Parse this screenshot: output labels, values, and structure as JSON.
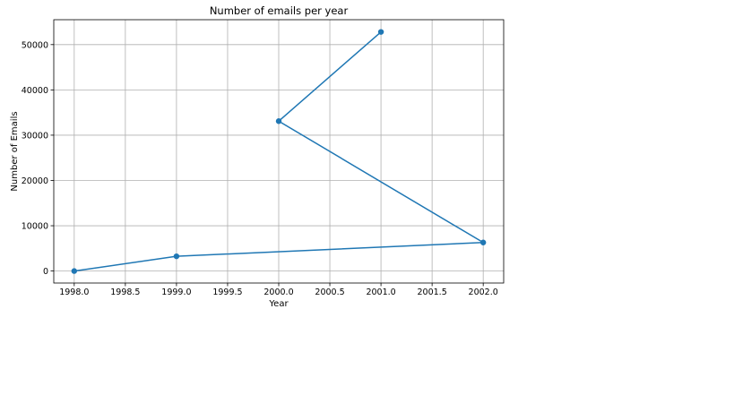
{
  "chart_data": {
    "type": "line",
    "title": "Number of emails per year",
    "xlabel": "Year",
    "ylabel": "Number of Emails",
    "xlim": [
      1997.8,
      2002.2
    ],
    "ylim": [
      -2650,
      55500
    ],
    "xticks": [
      1998.0,
      1998.5,
      1999.0,
      1999.5,
      2000.0,
      2000.5,
      2001.0,
      2001.5,
      2002.0
    ],
    "xtick_labels": [
      "1998.0",
      "1998.5",
      "1999.0",
      "1999.5",
      "2000.0",
      "2000.5",
      "2001.0",
      "2001.5",
      "2002.0"
    ],
    "yticks": [
      0,
      10000,
      20000,
      30000,
      40000,
      50000
    ],
    "ytick_labels": [
      "0",
      "10000",
      "20000",
      "30000",
      "40000",
      "50000"
    ],
    "grid": true,
    "colors": {
      "line": "#1f77b4"
    },
    "series": [
      {
        "x": [
          1998,
          1999,
          2002,
          2000,
          2001
        ],
        "y": [
          0,
          3250,
          6300,
          33100,
          52800
        ]
      }
    ]
  }
}
